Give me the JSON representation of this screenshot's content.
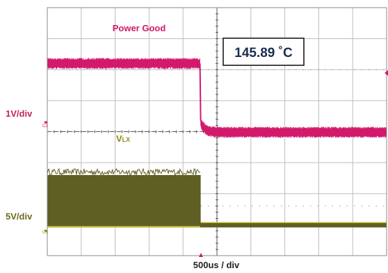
{
  "chart_data": {
    "type": "line",
    "title": "",
    "annotations": {
      "power_good_label": "Power Good",
      "vlx_label_main": "V",
      "vlx_label_sub": "LX",
      "temperature": "145.89 ˚C",
      "ch2_scale": "1V/div",
      "ch1_scale": "5V/div",
      "ch2_marker": "C2",
      "ch1_marker": "C1",
      "time_scale": "500us / div"
    },
    "grid": true,
    "divisions": {
      "x": 10,
      "y": 8
    },
    "time_per_div_us": 500,
    "trigger_time_div": 4.5,
    "series": [
      {
        "name": "Power Good",
        "color": "#d2196b",
        "scale_v_per_div": 1,
        "ground_div": 4.3,
        "points": [
          {
            "t_div": 0,
            "level_div": 6.2
          },
          {
            "t_div": 4.5,
            "level_div": 6.2
          },
          {
            "t_div": 4.52,
            "level_div": 4.35
          },
          {
            "t_div": 4.7,
            "level_div": 4.05
          },
          {
            "t_div": 5.0,
            "level_div": 3.98
          },
          {
            "t_div": 10,
            "level_div": 3.98
          }
        ]
      },
      {
        "name": "VLX",
        "color": "#6b6a1e",
        "scale_v_per_div": 5,
        "ground_div": 0.8,
        "switching_low_div": 0.95,
        "switching_high_div": 2.6,
        "switching_until_div": 4.5,
        "after_level_div": 1.0
      }
    ]
  },
  "colors": {
    "pg": "#d2196b",
    "vlx_fill": "#5f5e23",
    "vlx_label": "#8a8a10",
    "vlx_line": "#c9c23a",
    "grid": "#bdbdbd",
    "axis": "#888888",
    "label_red": "#c4245f",
    "text": "#222222"
  }
}
